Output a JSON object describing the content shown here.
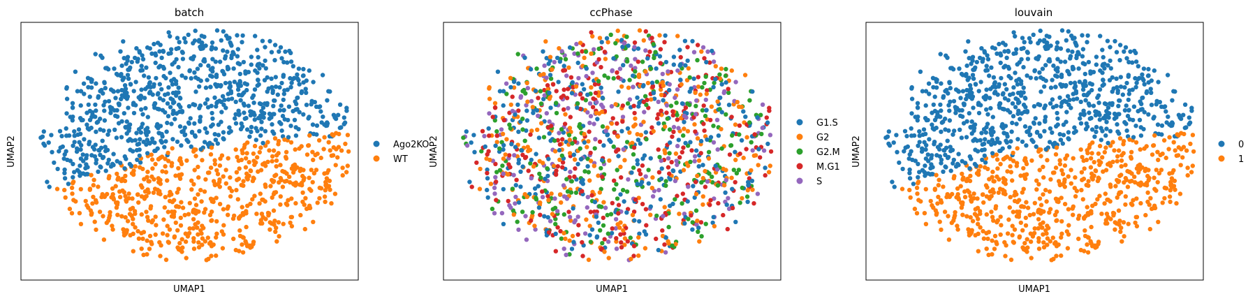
{
  "figure": {
    "panels": [
      {
        "title": "batch",
        "xlabel": "UMAP1",
        "ylabel": "UMAP2",
        "legend": [
          {
            "label": "Ago2KO",
            "color": "#1f77b4"
          },
          {
            "label": "WT",
            "color": "#ff7f0e"
          }
        ]
      },
      {
        "title": "ccPhase",
        "xlabel": "UMAP1",
        "ylabel": "UMAP2",
        "legend": [
          {
            "label": "G1.S",
            "color": "#1f77b4"
          },
          {
            "label": "G2",
            "color": "#ff7f0e"
          },
          {
            "label": "G2.M",
            "color": "#2ca02c"
          },
          {
            "label": "M.G1",
            "color": "#d62728"
          },
          {
            "label": "S",
            "color": "#9467bd"
          }
        ]
      },
      {
        "title": "louvain",
        "xlabel": "UMAP1",
        "ylabel": "UMAP2",
        "legend": [
          {
            "label": "0",
            "color": "#1f77b4"
          },
          {
            "label": "1",
            "color": "#ff7f0e"
          }
        ]
      }
    ]
  },
  "chart_data": [
    {
      "type": "scatter",
      "title": "batch",
      "xlabel": "UMAP1",
      "ylabel": "UMAP2",
      "xticks": "none",
      "yticks": "none",
      "grid": false,
      "legend_placement": "right-outside",
      "series": [
        {
          "name": "Ago2KO",
          "color": "#1f77b4",
          "region": "upper",
          "approx_points": 720
        },
        {
          "name": "WT",
          "color": "#ff7f0e",
          "region": "lower",
          "approx_points": 700
        }
      ]
    },
    {
      "type": "scatter",
      "title": "ccPhase",
      "xlabel": "UMAP1",
      "ylabel": "UMAP2",
      "xticks": "none",
      "yticks": "none",
      "grid": false,
      "legend_placement": "right-outside",
      "series": [
        {
          "name": "G1.S",
          "color": "#1f77b4",
          "region": "mixed",
          "approx_points": 330
        },
        {
          "name": "G2",
          "color": "#ff7f0e",
          "region": "mixed",
          "approx_points": 300
        },
        {
          "name": "G2.M",
          "color": "#2ca02c",
          "region": "mixed",
          "approx_points": 250
        },
        {
          "name": "M.G1",
          "color": "#d62728",
          "region": "mixed",
          "approx_points": 300
        },
        {
          "name": "S",
          "color": "#9467bd",
          "region": "mixed",
          "approx_points": 240
        }
      ]
    },
    {
      "type": "scatter",
      "title": "louvain",
      "xlabel": "UMAP1",
      "ylabel": "UMAP2",
      "xticks": "none",
      "yticks": "none",
      "grid": false,
      "legend_placement": "right-outside",
      "series": [
        {
          "name": "0",
          "color": "#1f77b4",
          "region": "upper",
          "approx_points": 720
        },
        {
          "name": "1",
          "color": "#ff7f0e",
          "region": "lower",
          "approx_points": 700
        }
      ]
    }
  ]
}
